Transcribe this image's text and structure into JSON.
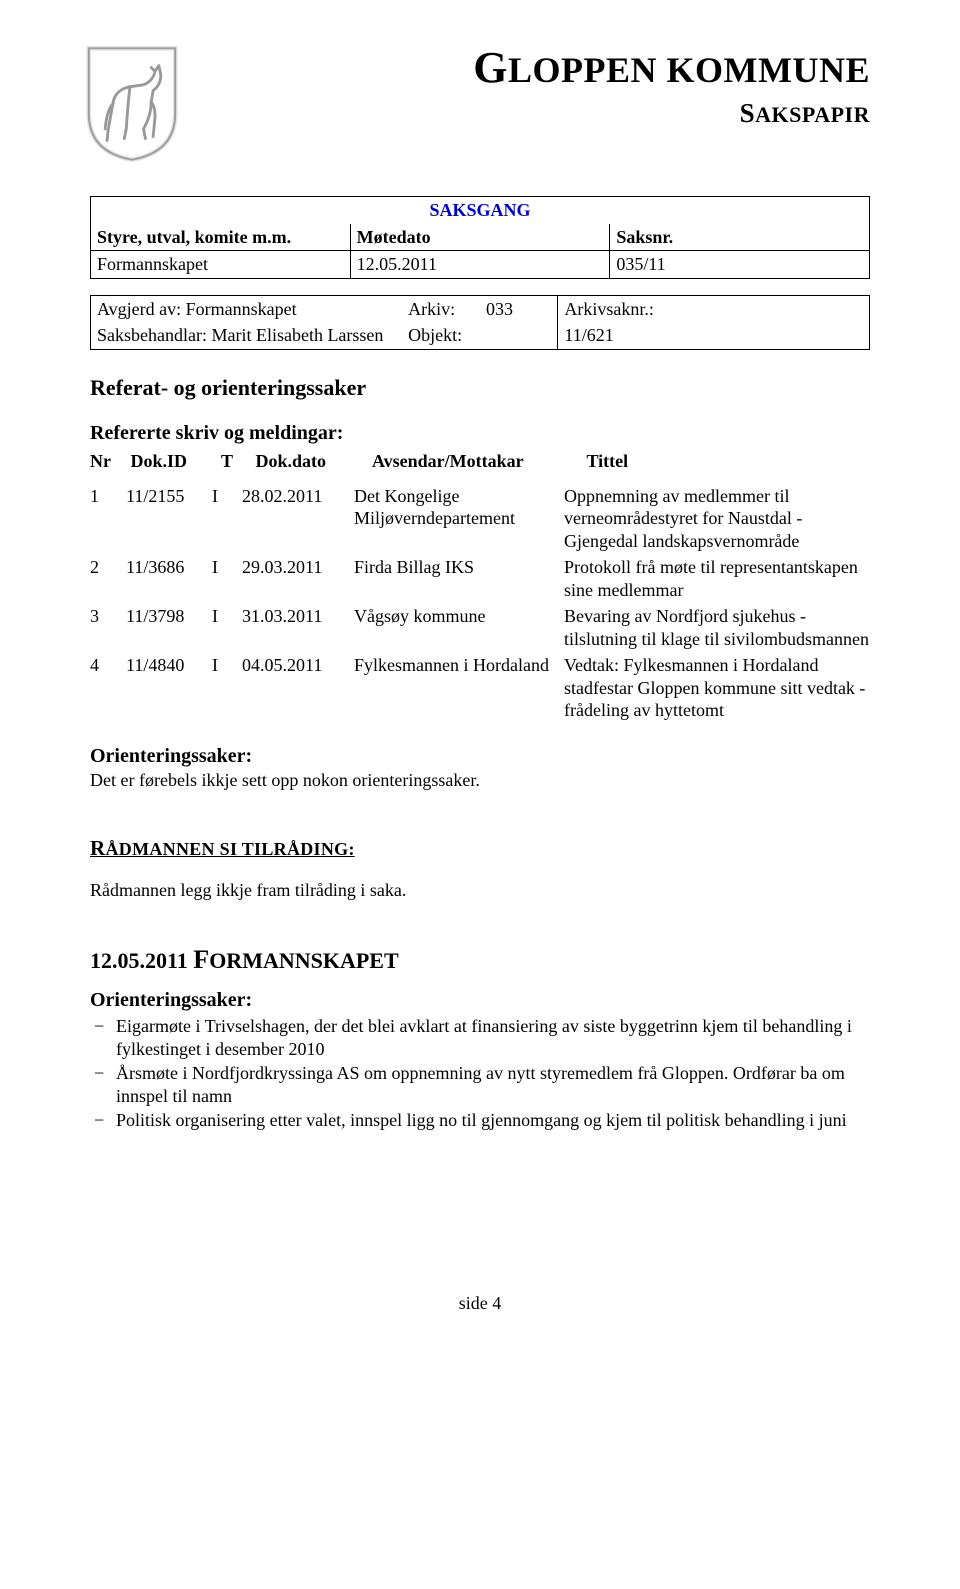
{
  "header": {
    "title_main": "LOPPEN KOMMUNE",
    "title_main_first": "G",
    "title_sub": "AKSPAPIR",
    "title_sub_first": "S"
  },
  "saksgang": {
    "title": "SAKSGANG",
    "h1": "Styre, utval, komite m.m.",
    "h2": "Møtedato",
    "h3": "Saksnr.",
    "r1c1": "Formannskapet",
    "r1c2": "12.05.2011",
    "r1c3": "035/11"
  },
  "box2": {
    "r1c1": "Avgjerd av: Formannskapet",
    "r1c2a": "Arkiv:",
    "r1c2b": "033",
    "r1c3a": "Arkivsaknr.:",
    "r2c1": "Saksbehandlar: Marit Elisabeth Larssen",
    "r2c2": "Objekt:",
    "r2c3": "11/621"
  },
  "sec_title": "Referat- og orienteringssaker",
  "ref_title": "Refererte skriv og meldingar:",
  "ref_head": {
    "nr": "Nr",
    "dokid": "Dok.ID",
    "t": "T",
    "dato": "Dok.dato",
    "av": "Avsendar/Mottakar",
    "tittel": "Tittel"
  },
  "refs": [
    {
      "nr": "1",
      "dokid": "11/2155",
      "t": "I",
      "dato": "28.02.2011",
      "av": "Det Kongelige Miljøverndepartement",
      "tit": "Oppnemning av medlemmer til verneområdestyret for Naustdal - Gjengedal landskapsvernområde"
    },
    {
      "nr": "2",
      "dokid": "11/3686",
      "t": "I",
      "dato": "29.03.2011",
      "av": "Firda Billag IKS",
      "tit": "Protokoll frå møte til representantskapen sine medlemmar"
    },
    {
      "nr": "3",
      "dokid": "11/3798",
      "t": "I",
      "dato": "31.03.2011",
      "av": "Vågsøy kommune",
      "tit": "Bevaring av Nordfjord sjukehus - tilslutning til klage til sivilombudsmannen"
    },
    {
      "nr": "4",
      "dokid": "11/4840",
      "t": "I",
      "dato": "04.05.2011",
      "av": "Fylkesmannen i Hordaland",
      "tit": "Vedtak: Fylkesmannen i Hordaland stadfestar Gloppen kommune sitt vedtak - frådeling av hyttetomt"
    }
  ],
  "orient1_title": "Orienteringssaker:",
  "orient1_text": "Det er førebels ikkje sett opp nokon orienteringssaker.",
  "radmann_head_first": "R",
  "radmann_head_rest": "ÅDMANNEN SI TILRÅDING",
  "radmann_text": "Rådmannen legg ikkje fram tilråding i saka.",
  "date_line_date": "12.05.2011 ",
  "date_line_first": "F",
  "date_line_rest": "ORMANNSKAPET",
  "orient2_title": "Orienteringssaker:",
  "bullets": [
    "Eigarmøte i Trivselshagen, der det blei avklart at finansiering av siste byggetrinn kjem til behandling i fylkestinget i desember 2010",
    "Årsmøte i Nordfjordkryssinga AS om oppnemning av nytt styremedlem frå Gloppen. Ordførar ba om innspel til namn",
    "Politisk organisering etter valet, innspel ligg no til gjennomgang og kjem til politisk behandling i juni"
  ],
  "footer": "side 4"
}
